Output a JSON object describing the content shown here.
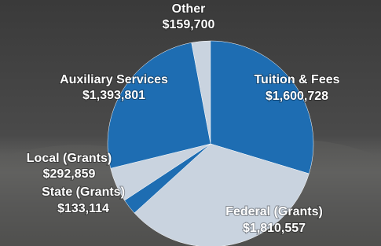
{
  "chart_data": {
    "type": "pie",
    "categories": [
      "Other",
      "Tuition & Fees",
      "Federal (Grants)",
      "State (Grants)",
      "Local (Grants)",
      "Auxiliary Services"
    ],
    "values": [
      159700,
      1600728,
      1810557,
      133114,
      292859,
      1393801
    ],
    "value_labels": [
      "$159,700",
      "$1,600,728",
      "$1,810,557",
      "$133,114",
      "$292,859",
      "$1,393,801"
    ],
    "colors": [
      "#c9d3df",
      "#1e6db2",
      "#c9d3df",
      "#1e6db2",
      "#c9d3df",
      "#1e6db2"
    ]
  }
}
